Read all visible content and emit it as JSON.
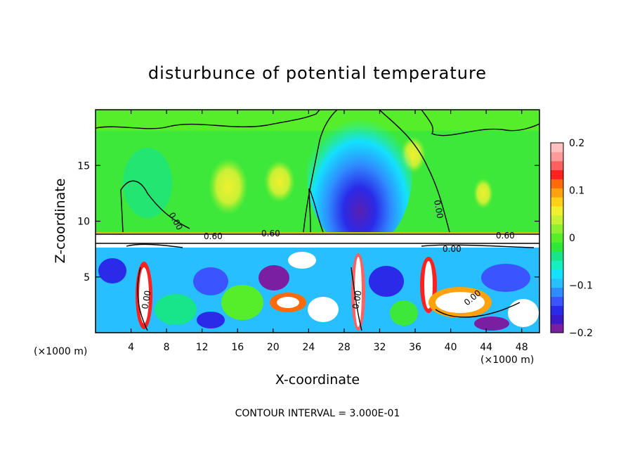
{
  "chart_data": {
    "type": "heatmap",
    "title": "disturbunce of potential temperature",
    "xlabel": "X-coordinate",
    "ylabel": "Z-coordinate",
    "x_unit": "(×1000 m)",
    "x_unit_right": "(×1000 m)",
    "xlim": [
      0,
      50
    ],
    "ylim": [
      0,
      20
    ],
    "x_ticks": [
      "4",
      "8",
      "12",
      "16",
      "20",
      "24",
      "28",
      "32",
      "36",
      "40",
      "44",
      "48"
    ],
    "y_ticks": [
      "5",
      "10",
      "15"
    ],
    "colorbar": {
      "range": [
        -0.2,
        0.2
      ],
      "ticks": [
        "0.2",
        "0.1",
        "0",
        "−0.1",
        "−0.2"
      ],
      "colors": [
        "#7a1fa2",
        "#3b1ac9",
        "#2a2ae8",
        "#3a55ff",
        "#2f8cff",
        "#27bfff",
        "#14e0ff",
        "#16f0c0",
        "#18e58a",
        "#2ee836",
        "#56ee2a",
        "#8ef02e",
        "#c8f034",
        "#f0f030",
        "#ffd018",
        "#ffa20e",
        "#ff6a0a",
        "#ff2020",
        "#ff6060",
        "#ff9a9a",
        "#ffc0c0"
      ]
    },
    "contour_labels": [
      "0.60",
      "0.60",
      "0.60",
      "0.00",
      "0.00",
      "0.00",
      "0.00",
      "0.00",
      "0.00"
    ],
    "footer": "CONTOUR INTERVAL = 3.000E-01"
  }
}
